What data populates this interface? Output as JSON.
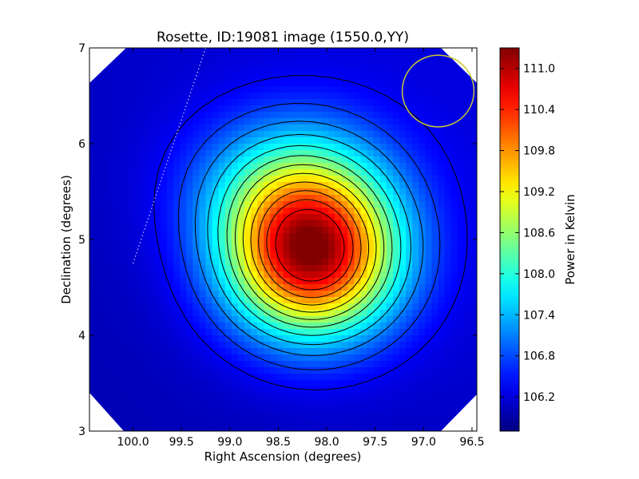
{
  "chart_data": {
    "type": "heatmap",
    "title": "Rosette, ID:19081 image (1550.0,YY)",
    "xlabel": "Right Ascension (degrees)",
    "ylabel": "Declination (degrees)",
    "colorbar_label": "Power in Kelvin",
    "xlim": [
      100.45,
      96.45
    ],
    "ylim": [
      3,
      7
    ],
    "x_ticks": [
      100.0,
      99.5,
      99.0,
      98.5,
      98.0,
      97.5,
      97.0,
      96.5
    ],
    "x_tick_labels": [
      "100.0",
      "99.5",
      "99.0",
      "98.5",
      "98.0",
      "97.5",
      "97.0",
      "96.5"
    ],
    "y_ticks": [
      3,
      4,
      5,
      6,
      7
    ],
    "y_tick_labels": [
      "3",
      "4",
      "5",
      "6",
      "7"
    ],
    "colorbar_range": [
      105.7,
      111.3
    ],
    "colorbar_ticks": [
      106.2,
      106.8,
      107.4,
      108.0,
      108.6,
      109.2,
      109.8,
      110.4,
      111.0
    ],
    "colorbar_tick_labels": [
      "106.2",
      "106.8",
      "107.4",
      "108.0",
      "108.6",
      "109.2",
      "109.8",
      "110.4",
      "111.0"
    ],
    "colormap": "jet",
    "peak": {
      "ra": 98.15,
      "dec": 4.8,
      "value": 111.1
    },
    "background_value": 106.1,
    "contour_levels": [
      106.35,
      106.7,
      107.1,
      107.5,
      107.9,
      108.3,
      108.7,
      109.1,
      109.5,
      109.9,
      110.3,
      110.7
    ],
    "beam_circle": {
      "ra": 96.85,
      "dec": 6.55,
      "radius_deg": 0.37,
      "color": "#c8c832"
    },
    "dotted_line": {
      "points": [
        [
          99.25,
          7.0
        ],
        [
          100.0,
          4.75
        ]
      ],
      "color": "#c8c8ff"
    },
    "grid": false
  }
}
